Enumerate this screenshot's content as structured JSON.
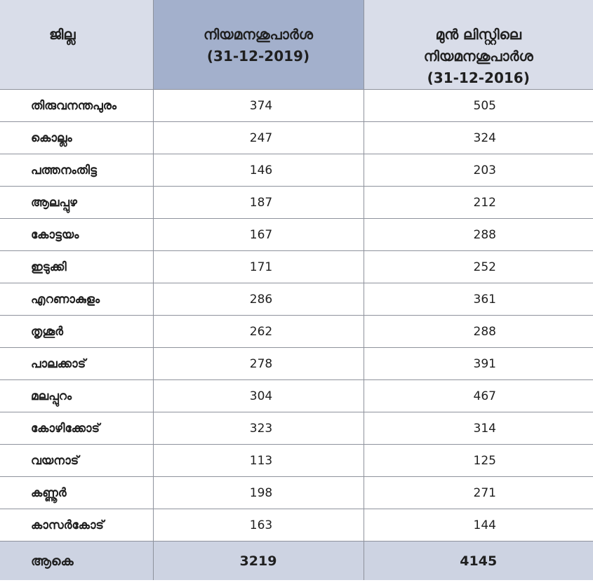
{
  "headers": {
    "district": "ജില്ല",
    "current_line1": "നിയമനശുപാർശ",
    "current_line2": "(31-12-2019)",
    "prev_line1": "മുൻ ലിസ്റ്റിലെ",
    "prev_line2": "നിയമനശുപാർശ",
    "prev_line3": "(31-12-2016)"
  },
  "rows": [
    {
      "district": "തിരുവനന്തപുരം",
      "v2019": "374",
      "v2016": "505"
    },
    {
      "district": "കൊല്ലം",
      "v2019": "247",
      "v2016": "324"
    },
    {
      "district": "പത്തനംതിട്ട",
      "v2019": "146",
      "v2016": "203"
    },
    {
      "district": "ആലപ്പുഴ",
      "v2019": "187",
      "v2016": "212"
    },
    {
      "district": "കോട്ടയം",
      "v2019": "167",
      "v2016": "288"
    },
    {
      "district": "ഇടുക്കി",
      "v2019": "171",
      "v2016": "252"
    },
    {
      "district": "എറണാകുളം",
      "v2019": "286",
      "v2016": "361"
    },
    {
      "district": "തൃശൂർ",
      "v2019": "262",
      "v2016": "288"
    },
    {
      "district": "പാലക്കാട്",
      "v2019": "278",
      "v2016": "391"
    },
    {
      "district": "മലപ്പുറം",
      "v2019": "304",
      "v2016": "467"
    },
    {
      "district": "കോഴിക്കോട്",
      "v2019": "323",
      "v2016": "314"
    },
    {
      "district": "വയനാട്",
      "v2019": "113",
      "v2016": "125"
    },
    {
      "district": "കണ്ണൂർ",
      "v2019": "198",
      "v2016": "271"
    },
    {
      "district": "കാസർകോട്",
      "v2019": "163",
      "v2016": "144"
    }
  ],
  "total": {
    "label": "ആകെ",
    "v2019": "3219",
    "v2016": "4145"
  },
  "colors": {
    "header_bg": "#d9dde9",
    "highlight_bg": "#a3b0cc",
    "total_bg": "#cdd3e2",
    "border": "#8e929c"
  }
}
